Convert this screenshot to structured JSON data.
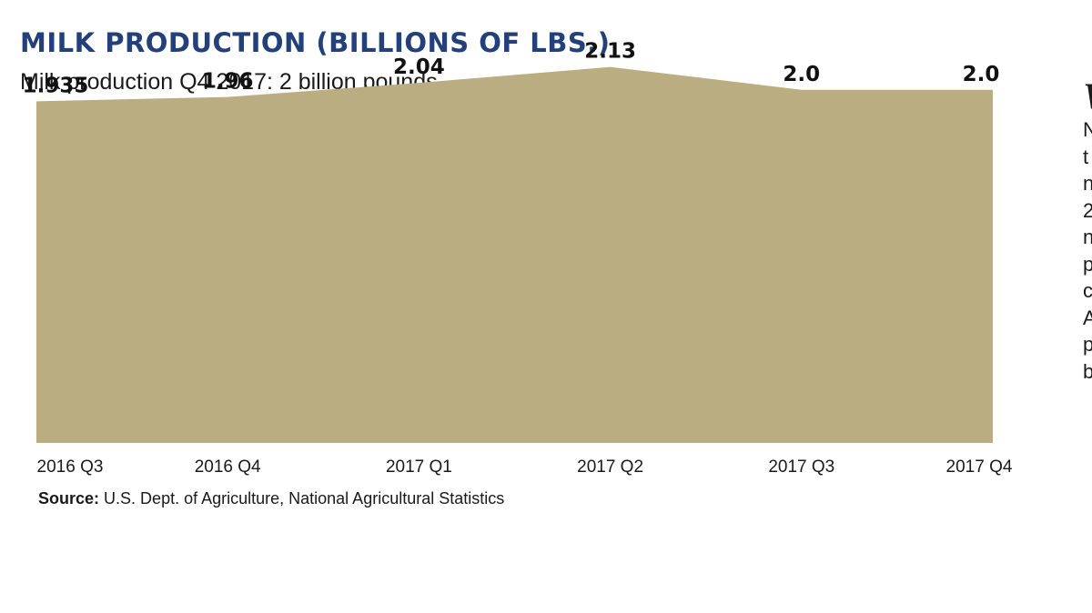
{
  "chart_data": {
    "type": "area",
    "title": "MILK PRODUCTION (BILLIONS OF LBS.)",
    "subtitle": "Milk production Q4 2017: 2 billion pounds",
    "categories": [
      "2016 Q3",
      "2016 Q4",
      "2017 Q1",
      "2017 Q2",
      "2017 Q3",
      "2017 Q4"
    ],
    "values": [
      1.935,
      1.96,
      2.04,
      2.13,
      2.0,
      2.0
    ],
    "value_labels": [
      "1.935",
      "1.96",
      "2.04",
      "2.13",
      "2.0",
      "2.0"
    ],
    "xlabel": "",
    "ylabel": "",
    "ylim": [
      0,
      2.2
    ],
    "grid": false,
    "fill_color": "#bbad82",
    "source_label": "Source:",
    "source_text": "U.S. Dept. of Agriculture, National Agricultural Statistics"
  },
  "side_panel": {
    "heading": "W",
    "lines": [
      "N",
      "t",
      "n",
      "2",
      "n",
      "p",
      "c",
      "A",
      "p",
      "b"
    ]
  },
  "colors": {
    "title": "#24407a",
    "area": "#bbad82",
    "text": "#1a1a1a"
  }
}
